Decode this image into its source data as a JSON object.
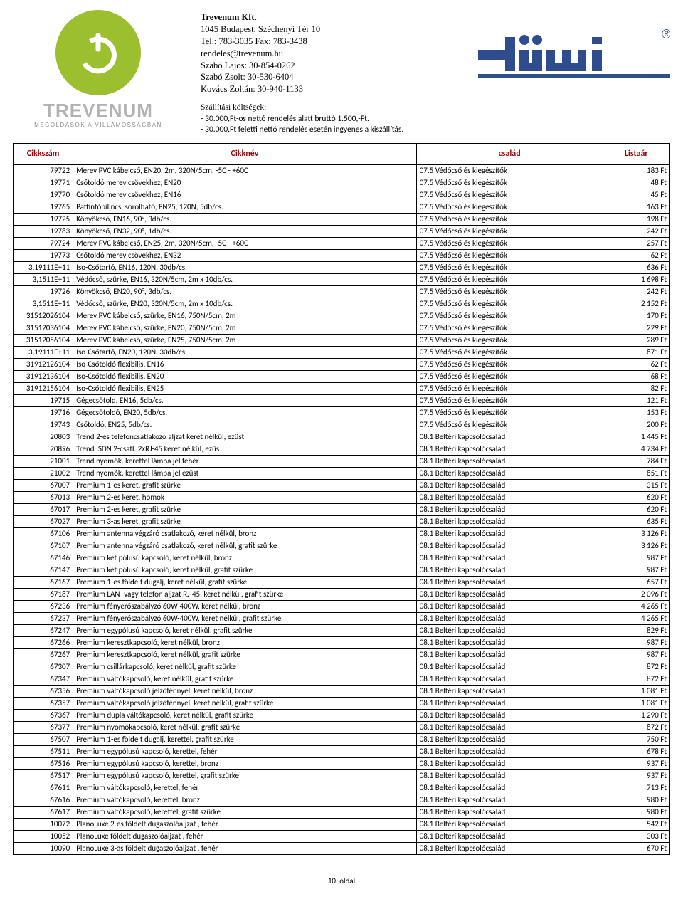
{
  "letterhead": {
    "company": "Trevenum Kft.",
    "address": "1045 Budapest, Széchenyi Tér 10",
    "telFax": "Tel.: 783-3035 Fax: 783-3438",
    "email": "rendeles@trevenum.hu",
    "contacts": [
      "Szabó Lajos: 30-854-0262",
      "Szabó Zsolt: 30-530-6404",
      "Kovács Zoltán: 30-940-1133"
    ],
    "shippingTitle": "Szállítási költségek:",
    "shippingLines": [
      "- 30.000,Ft-os nettó rendelés alatt  bruttó 1.500,-Ft.",
      "- 30.000,Ft feletti nettó rendelés esetén ingyenes a kiszállítás."
    ],
    "logoWord": "TREVENUM",
    "logoSub": "MEGOLDÁSOK A VILLAMOSSÁGBAN",
    "brandWord": "düwi",
    "brandColor": "#2f4c8c"
  },
  "headers": {
    "code": "Cikkszám",
    "name": "Cikknév",
    "family": "család",
    "price": "Listaár"
  },
  "rows": [
    {
      "c": "79722",
      "n": "Merev PVC kábelcső, EN20, 2m, 320N/5cm, -5C - +60C",
      "f": "07.5 Védőcső és kiegészítők",
      "p": "183 Ft"
    },
    {
      "c": "19771",
      "n": "Csőtoldó merev csövekhez, EN20",
      "f": "07.5 Védőcső és kiegészítők",
      "p": "48 Ft"
    },
    {
      "c": "19770",
      "n": "Csőtoldó merev csövekhez, EN16",
      "f": "07.5 Védőcső és kiegészítők",
      "p": "45 Ft"
    },
    {
      "c": "19765",
      "n": "Pattintóbilincs, sorolható, EN25, 120N, 5db/cs.",
      "f": "07.5 Védőcső és kiegészítők",
      "p": "163 Ft"
    },
    {
      "c": "19725",
      "n": "Könyökcső, EN16, 90°, 3db/cs.",
      "f": "07.5 Védőcső és kiegészítők",
      "p": "198 Ft"
    },
    {
      "c": "19783",
      "n": "Könyökcső, EN32, 90°, 1db/cs.",
      "f": "07.5 Védőcső és kiegészítők",
      "p": "242 Ft"
    },
    {
      "c": "79724",
      "n": "Merev PVC kábelcső, EN25, 2m, 320N/5cm, -5C - +60C",
      "f": "07.5 Védőcső és kiegészítők",
      "p": "257 Ft"
    },
    {
      "c": "19773",
      "n": "Csőtoldó merev csövekhez, EN32",
      "f": "07.5 Védőcső és kiegészítők",
      "p": "62 Ft"
    },
    {
      "c": "3,19111E+11",
      "n": "Iso-Csőtartó, EN16, 120N, 30db/cs.",
      "f": "07.5 Védőcső és kiegészítők",
      "p": "636 Ft"
    },
    {
      "c": "3,1511E+11",
      "n": "Védőcső, szürke, EN16, 320N/5cm, 2m x 10db/cs.",
      "f": "07.5 Védőcső és kiegészítők",
      "p": "1 698 Ft"
    },
    {
      "c": "19726",
      "n": "Könyökcső, EN20, 90°, 3db/cs.",
      "f": "07.5 Védőcső és kiegészítők",
      "p": "242 Ft"
    },
    {
      "c": "3,1511E+11",
      "n": "Védőcső, szürke, EN20, 320N/5cm, 2m x 10db/cs.",
      "f": "07.5 Védőcső és kiegészítők",
      "p": "2 152 Ft"
    },
    {
      "c": "31512026104",
      "n": "Merev PVC kábelcső, szürke, EN16, 750N/5cm, 2m",
      "f": "07.5 Védőcső és kiegészítők",
      "p": "170 Ft"
    },
    {
      "c": "31512036104",
      "n": "Merev PVC kábelcső, szürke, EN20, 750N/5cm, 2m",
      "f": "07.5 Védőcső és kiegészítők",
      "p": "229 Ft"
    },
    {
      "c": "31512056104",
      "n": "Merev PVC kábelcső, szürke, EN25, 750N/5cm, 2m",
      "f": "07.5 Védőcső és kiegészítők",
      "p": "289 Ft"
    },
    {
      "c": "3,19111E+11",
      "n": "Iso-Csőtartó, EN20, 120N, 30db/cs.",
      "f": "07.5 Védőcső és kiegészítők",
      "p": "871 Ft"
    },
    {
      "c": "31912126104",
      "n": "Iso-Csőtoldó flexibilis, EN16",
      "f": "07.5 Védőcső és kiegészítők",
      "p": "62 Ft"
    },
    {
      "c": "31912136104",
      "n": "Iso-Csőtoldó flexibilis, EN20",
      "f": "07.5 Védőcső és kiegészítők",
      "p": "68 Ft"
    },
    {
      "c": "31912156104",
      "n": "Iso-Csőtoldó flexibilis, EN25",
      "f": "07.5 Védőcső és kiegészítők",
      "p": "82 Ft"
    },
    {
      "c": "19715",
      "n": "Gégecsőtold, EN16, 5db/cs.",
      "f": "07.5 Védőcső és kiegészítők",
      "p": "121 Ft"
    },
    {
      "c": "19716",
      "n": "Gégecsőtoldó, EN20, 5db/cs.",
      "f": "07.5 Védőcső és kiegészítők",
      "p": "153 Ft"
    },
    {
      "c": "19743",
      "n": "Csőtoldó, EN25, 5db/cs.",
      "f": "07.5 Védőcső és kiegészítők",
      "p": "200 Ft"
    },
    {
      "c": "20803",
      "n": "Trend 2-es telefoncsatlakozó aljzat keret nélkül, ezüst",
      "f": "08.1 Beltéri kapcsolócsalád",
      "p": "1 445 Ft"
    },
    {
      "c": "20896",
      "n": "Trend ISDN 2-csatl. 2xRJ-45 keret nélkül, ezüs",
      "f": "08.1 Beltéri kapcsolócsalád",
      "p": "4 734 Ft"
    },
    {
      "c": "21001",
      "n": "Trend nyomók. kerettel lámpa jel fehér",
      "f": "08.1 Beltéri kapcsolócsalád",
      "p": "784 Ft"
    },
    {
      "c": "21002",
      "n": "Trend nyomók. kerettel lámpa jel ezüst",
      "f": "08.1 Beltéri kapcsolócsalád",
      "p": "851 Ft"
    },
    {
      "c": "67007",
      "n": "Premium 1-es keret, grafit szürke",
      "f": "08.1 Beltéri kapcsolócsalád",
      "p": "315 Ft"
    },
    {
      "c": "67013",
      "n": "Premium 2-es keret, homok",
      "f": "08.1 Beltéri kapcsolócsalád",
      "p": "620 Ft"
    },
    {
      "c": "67017",
      "n": "Premium 2-es keret, grafit szürke",
      "f": "08.1 Beltéri kapcsolócsalád",
      "p": "620 Ft"
    },
    {
      "c": "67027",
      "n": "Premium 3-as keret, grafit szürke",
      "f": "08.1 Beltéri kapcsolócsalád",
      "p": "635 Ft"
    },
    {
      "c": "67106",
      "n": "Premium antenna végzáró csatlakozó, keret nélkül, bronz",
      "f": "08.1 Beltéri kapcsolócsalád",
      "p": "3 126 Ft"
    },
    {
      "c": "67107",
      "n": "Premium antenna végzáró csatlakozó, keret nélkül, grafit szürke",
      "f": "08.1 Beltéri kapcsolócsalád",
      "p": "3 126 Ft"
    },
    {
      "c": "67146",
      "n": "Premium két pólusú kapcsoló, keret nélkül, bronz",
      "f": "08.1 Beltéri kapcsolócsalád",
      "p": "987 Ft"
    },
    {
      "c": "67147",
      "n": "Premium két pólusú kapcsoló, keret nélkül, grafit szürke",
      "f": "08.1 Beltéri kapcsolócsalád",
      "p": "987 Ft"
    },
    {
      "c": "67167",
      "n": "Premium 1-es földelt dugalj, keret nélkül, grafit szürke",
      "f": "08.1 Beltéri kapcsolócsalád",
      "p": "657 Ft"
    },
    {
      "c": "67187",
      "n": "Premium LAN- vagy telefon aljzat RJ-45, keret nélkül, grafit szürke",
      "f": "08.1 Beltéri kapcsolócsalád",
      "p": "2 096 Ft"
    },
    {
      "c": "67236",
      "n": "Premium fényerőszabályzó 60W-400W, keret nélkül, bronz",
      "f": "08.1 Beltéri kapcsolócsalád",
      "p": "4 265 Ft"
    },
    {
      "c": "67237",
      "n": "Premium fényerőszabályzó 60W-400W, keret nélkül, grafit szürke",
      "f": "08.1 Beltéri kapcsolócsalád",
      "p": "4 265 Ft"
    },
    {
      "c": "67247",
      "n": "Premium egypólusú kapcsoló, keret nélkül, grafit szürke",
      "f": "08.1 Beltéri kapcsolócsalád",
      "p": "829 Ft"
    },
    {
      "c": "67266",
      "n": "Premium keresztkapcsoló, keret nélkül, bronz",
      "f": "08.1 Beltéri kapcsolócsalád",
      "p": "987 Ft"
    },
    {
      "c": "67267",
      "n": "Premium keresztkapcsoló, keret nélkül, grafit szürke",
      "f": "08.1 Beltéri kapcsolócsalád",
      "p": "987 Ft"
    },
    {
      "c": "67307",
      "n": "Premium csillárkapcsoló, keret nélkül, grafit szürke",
      "f": "08.1 Beltéri kapcsolócsalád",
      "p": "872 Ft"
    },
    {
      "c": "67347",
      "n": "Premium váltókapcsoló, keret nélkül, grafit szürke",
      "f": "08.1 Beltéri kapcsolócsalád",
      "p": "872 Ft"
    },
    {
      "c": "67356",
      "n": "Premium váltókapcsoló jelzőfénnyel, keret nélkül, bronz",
      "f": "08.1 Beltéri kapcsolócsalád",
      "p": "1 081 Ft"
    },
    {
      "c": "67357",
      "n": "Premium váltókapcsoló jelzőfénnyel, keret nélkül, grafit szürke",
      "f": "08.1 Beltéri kapcsolócsalád",
      "p": "1 081 Ft"
    },
    {
      "c": "67367",
      "n": "Premium dupla váltókapcsoló, keret nélkül, grafit szürke",
      "f": "08.1 Beltéri kapcsolócsalád",
      "p": "1 290 Ft"
    },
    {
      "c": "67377",
      "n": "Premium nyomókapcsoló, keret nélkül, grafit szürke",
      "f": "08.1 Beltéri kapcsolócsalád",
      "p": "872 Ft"
    },
    {
      "c": "67507",
      "n": "Premium 1-es földelt dugalj, kerettel, grafit szürke",
      "f": "08.1 Beltéri kapcsolócsalád",
      "p": "750 Ft"
    },
    {
      "c": "67511",
      "n": "Premium egypólusú kapcsoló, kerettel, fehér",
      "f": "08.1 Beltéri kapcsolócsalád",
      "p": "678 Ft"
    },
    {
      "c": "67516",
      "n": "Premium egypólusú kapcsoló, kerettel, bronz",
      "f": "08.1 Beltéri kapcsolócsalád",
      "p": "937 Ft"
    },
    {
      "c": "67517",
      "n": "Premium egypólusú kapcsoló, kerettel, grafit szürke",
      "f": "08.1 Beltéri kapcsolócsalád",
      "p": "937 Ft"
    },
    {
      "c": "67611",
      "n": "Premium váltókapcsoló, kerettel, fehér",
      "f": "08.1 Beltéri kapcsolócsalád",
      "p": "713 Ft"
    },
    {
      "c": "67616",
      "n": "Premium váltókapcsoló, kerettel, bronz",
      "f": "08.1 Beltéri kapcsolócsalád",
      "p": "980 Ft"
    },
    {
      "c": "67617",
      "n": "Premium váltókapcsoló, kerettel, grafit szürke",
      "f": "08.1 Beltéri kapcsolócsalád",
      "p": "980 Ft"
    },
    {
      "c": "10072",
      "n": "PlanoLuxe 2-es földelt dugaszolóaljzat , fehér",
      "f": "08.1 Beltéri kapcsolócsalád",
      "p": "542 Ft"
    },
    {
      "c": "10052",
      "n": "PlanoLuxe földelt dugaszolóaljzat , fehér",
      "f": "08.1 Beltéri kapcsolócsalád",
      "p": "303 Ft"
    },
    {
      "c": "10090",
      "n": "PlanoLuxe 3-as földelt dugaszolóaljzat , fehér",
      "f": "08.1 Beltéri kapcsolócsalád",
      "p": "670 Ft"
    }
  ],
  "pageNumber": "10. oldal",
  "colors": {
    "headerText": "#9c0006",
    "border": "#000000",
    "logoGreen": "#9bbf2f",
    "logoGrey": "#b2b2b2",
    "brand": "#2f4c8c"
  }
}
